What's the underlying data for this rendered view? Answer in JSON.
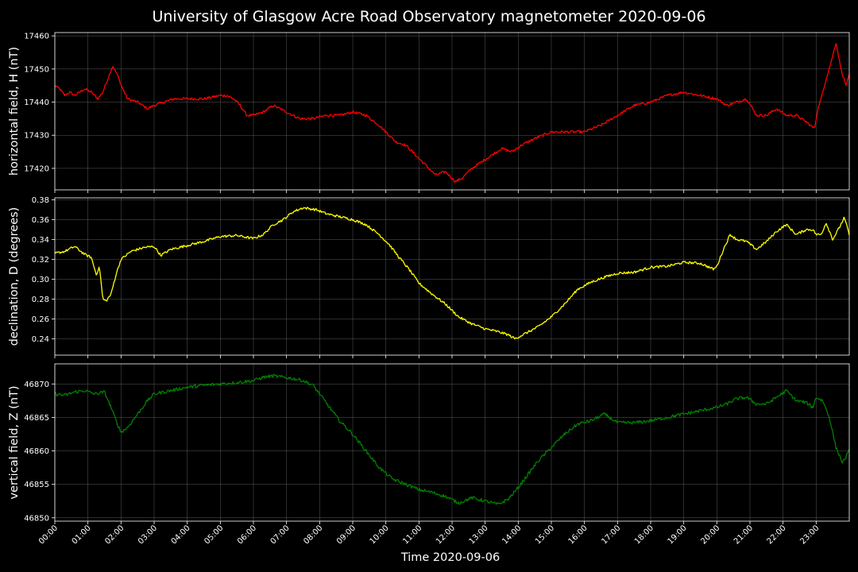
{
  "figure": {
    "title": "University of Glasgow Acre Road Observatory magnetometer 2020-09-06",
    "background": "#000000",
    "foreground": "#ffffff",
    "grid_color": "#808080"
  },
  "chart_data": [
    {
      "type": "line",
      "title": "University of Glasgow Acre Road Observatory magnetometer 2020-09-06",
      "xlabel": "",
      "ylabel": "horizontal field, H (nT)",
      "color": "#ff0000",
      "xlim": [
        0,
        24
      ],
      "ylim": [
        17413.5,
        17461
      ],
      "yticks": [
        17420,
        17430,
        17440,
        17450,
        17460
      ],
      "grid": true,
      "noise": 0.8,
      "series": [
        {
          "x": [
            0,
            0.15,
            0.3,
            0.45,
            0.6,
            0.75,
            0.9,
            1.1,
            1.3,
            1.45,
            1.6,
            1.75,
            1.9,
            2.05,
            2.2,
            2.5,
            2.8,
            3.0,
            3.3,
            3.6,
            4.0,
            4.5,
            5.0,
            5.2,
            5.4,
            5.6,
            5.8,
            6.0,
            6.3,
            6.6,
            7.0,
            7.4,
            7.8,
            8.2,
            8.6,
            9.0,
            9.4,
            9.8,
            10.0,
            10.3,
            10.6,
            10.9,
            11.2,
            11.5,
            11.8,
            12.1,
            12.3,
            12.6,
            12.9,
            13.2,
            13.5,
            13.8,
            14.1,
            14.5,
            15.0,
            15.5,
            16.0,
            16.5,
            17.0,
            17.5,
            18.0,
            18.5,
            19.0,
            19.5,
            20.0,
            20.3,
            20.6,
            20.9,
            21.2,
            21.5,
            21.8,
            22.1,
            22.4,
            22.7,
            22.95,
            23.05,
            23.15,
            23.3,
            23.45,
            23.6,
            23.75,
            23.9,
            24.0
          ],
          "values": [
            17445,
            17444,
            17442,
            17443,
            17442,
            17443,
            17444,
            17443,
            17441,
            17443,
            17447,
            17451,
            17448,
            17444,
            17441,
            17440,
            17438,
            17439,
            17440,
            17441,
            17441,
            17441,
            17442,
            17442,
            17441,
            17439,
            17436,
            17436,
            17437,
            17439,
            17437,
            17435,
            17435,
            17436,
            17436,
            17437,
            17436,
            17433,
            17431,
            17428,
            17427,
            17424,
            17421,
            17418,
            17419,
            17416,
            17417,
            17420,
            17422,
            17424,
            17426,
            17425,
            17427,
            17429,
            17431,
            17431,
            17431,
            17433,
            17436,
            17439,
            17440,
            17442,
            17443,
            17442,
            17441,
            17439,
            17440,
            17441,
            17436,
            17436,
            17438,
            17436,
            17436,
            17434,
            17432,
            17438,
            17441,
            17447,
            17452,
            17458,
            17450,
            17445,
            17448
          ]
        }
      ]
    },
    {
      "type": "line",
      "xlabel": "",
      "ylabel": "declination, D (degrees)",
      "color": "#ffff00",
      "xlim": [
        0,
        24
      ],
      "ylim": [
        0.2235,
        0.382
      ],
      "yticks": [
        0.24,
        0.26,
        0.28,
        0.3,
        0.32,
        0.34,
        0.36,
        0.38
      ],
      "grid": true,
      "noise": 0.0025,
      "series": [
        {
          "x": [
            0,
            0.3,
            0.6,
            0.9,
            1.1,
            1.25,
            1.35,
            1.45,
            1.55,
            1.7,
            1.85,
            2.0,
            2.3,
            2.7,
            3.0,
            3.2,
            3.5,
            4.0,
            4.5,
            5.0,
            5.5,
            6.0,
            6.3,
            6.6,
            6.9,
            7.2,
            7.5,
            7.9,
            8.2,
            8.6,
            9.0,
            9.4,
            9.8,
            10.1,
            10.4,
            10.7,
            11.0,
            11.4,
            11.8,
            12.2,
            12.6,
            13.0,
            13.4,
            13.7,
            13.9,
            14.2,
            14.6,
            15.0,
            15.4,
            15.8,
            16.2,
            16.6,
            17.0,
            17.5,
            18.0,
            18.5,
            19.0,
            19.5,
            19.9,
            20.0,
            20.2,
            20.4,
            20.6,
            20.9,
            21.2,
            21.5,
            21.8,
            22.1,
            22.4,
            22.7,
            22.9,
            23.0,
            23.15,
            23.3,
            23.5,
            23.7,
            23.85,
            24.0
          ],
          "values": [
            0.326,
            0.328,
            0.333,
            0.325,
            0.322,
            0.305,
            0.312,
            0.28,
            0.278,
            0.285,
            0.305,
            0.32,
            0.328,
            0.332,
            0.333,
            0.324,
            0.33,
            0.334,
            0.338,
            0.343,
            0.344,
            0.341,
            0.345,
            0.355,
            0.36,
            0.368,
            0.372,
            0.37,
            0.366,
            0.363,
            0.36,
            0.355,
            0.345,
            0.335,
            0.322,
            0.31,
            0.296,
            0.285,
            0.275,
            0.262,
            0.255,
            0.25,
            0.247,
            0.244,
            0.24,
            0.245,
            0.252,
            0.262,
            0.275,
            0.29,
            0.297,
            0.302,
            0.306,
            0.307,
            0.312,
            0.313,
            0.317,
            0.316,
            0.31,
            0.313,
            0.33,
            0.345,
            0.34,
            0.338,
            0.33,
            0.338,
            0.348,
            0.355,
            0.345,
            0.35,
            0.35,
            0.345,
            0.345,
            0.357,
            0.34,
            0.352,
            0.362,
            0.345
          ]
        }
      ]
    },
    {
      "type": "line",
      "xlabel": "Time 2020-09-06",
      "ylabel": "vertical field, Z (nT)",
      "color": "#008000",
      "xlim": [
        0,
        24
      ],
      "ylim": [
        46849.5,
        46873
      ],
      "yticks": [
        46850,
        46855,
        46860,
        46865,
        46870
      ],
      "xticks": [
        "00:00",
        "01:00",
        "02:00",
        "03:00",
        "04:00",
        "05:00",
        "06:00",
        "07:00",
        "08:00",
        "09:00",
        "10:00",
        "11:00",
        "12:00",
        "13:00",
        "14:00",
        "15:00",
        "16:00",
        "17:00",
        "18:00",
        "19:00",
        "20:00",
        "21:00",
        "22:00",
        "23:00"
      ],
      "grid": true,
      "noise": 0.5,
      "series": [
        {
          "x": [
            0,
            0.3,
            0.6,
            0.9,
            1.2,
            1.5,
            1.7,
            1.85,
            2.0,
            2.2,
            2.5,
            2.8,
            3.0,
            3.5,
            4.0,
            4.5,
            5.0,
            5.5,
            6.0,
            6.3,
            6.6,
            6.9,
            7.2,
            7.5,
            7.8,
            8.0,
            8.3,
            8.6,
            9.0,
            9.4,
            9.8,
            10.2,
            10.6,
            11.0,
            11.4,
            11.8,
            12.2,
            12.6,
            13.0,
            13.4,
            13.7,
            14.0,
            14.3,
            14.6,
            15.0,
            15.4,
            15.8,
            16.2,
            16.6,
            17.0,
            17.5,
            18.0,
            18.5,
            19.0,
            19.5,
            20.0,
            20.3,
            20.6,
            20.9,
            21.2,
            21.5,
            21.8,
            22.1,
            22.4,
            22.7,
            22.9,
            23.0,
            23.2,
            23.4,
            23.6,
            23.8,
            24.0
          ],
          "values": [
            46868.5,
            46868.3,
            46868.8,
            46869,
            46868.5,
            46868.8,
            46866.5,
            46864.5,
            46862.8,
            46863.5,
            46865.5,
            46867.5,
            46868.5,
            46869,
            46869.5,
            46869.8,
            46870,
            46870.2,
            46870.5,
            46871,
            46871.2,
            46871,
            46870.8,
            46870.5,
            46869.8,
            46868.5,
            46866.5,
            46864.5,
            46862.5,
            46860,
            46857.5,
            46855.8,
            46855,
            46854.2,
            46853.8,
            46853.2,
            46852.2,
            46853,
            46852.5,
            46852,
            46852.8,
            46854.5,
            46856.5,
            46858.5,
            46860.5,
            46862.5,
            46864,
            46864.5,
            46865.5,
            46864.2,
            46864.2,
            46864.5,
            46865,
            46865.5,
            46866,
            46866.5,
            46867,
            46867.8,
            46868,
            46867,
            46867,
            46868,
            46869,
            46867.5,
            46867.2,
            46866.5,
            46868,
            46867.5,
            46865,
            46860.5,
            46858.2,
            46860
          ]
        }
      ]
    }
  ]
}
